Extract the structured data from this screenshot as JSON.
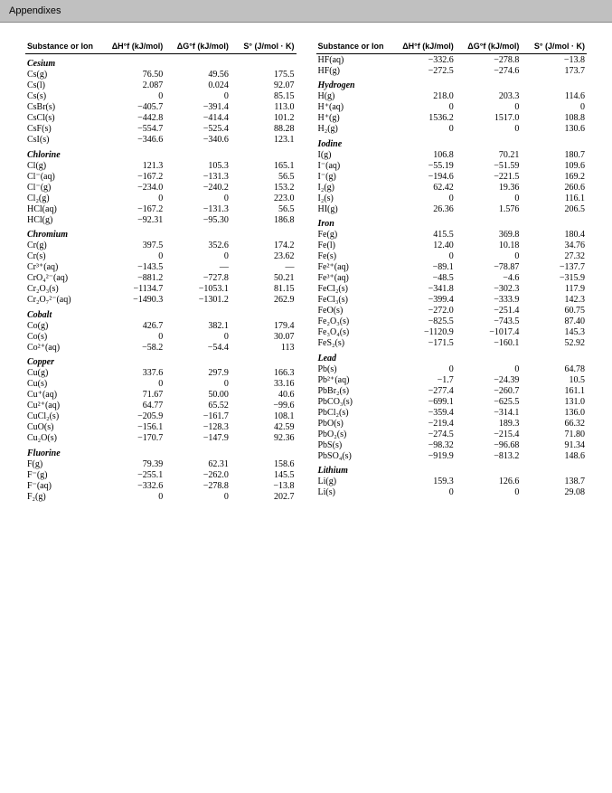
{
  "header": {
    "label": "Appendixes"
  },
  "columns": {
    "c1": "Substance or Ion",
    "c2": "ΔH°f (kJ/mol)",
    "c3": "ΔG°f (kJ/mol)",
    "c4": "S° (J/mol · K)"
  },
  "categories": [
    {
      "name": "Cesium",
      "col": 0,
      "rows": [
        [
          "Cs(g)",
          "76.50",
          "49.56",
          "175.5"
        ],
        [
          "Cs(l)",
          "2.087",
          "0.024",
          "92.07"
        ],
        [
          "Cs(s)",
          "0",
          "0",
          "85.15"
        ],
        [
          "CsBr(s)",
          "−405.7",
          "−391.4",
          "113.0"
        ],
        [
          "CsCl(s)",
          "−442.8",
          "−414.4",
          "101.2"
        ],
        [
          "CsF(s)",
          "−554.7",
          "−525.4",
          "88.28"
        ],
        [
          "CsI(s)",
          "−346.6",
          "−340.6",
          "123.1"
        ]
      ]
    },
    {
      "name": "Chlorine",
      "col": 0,
      "rows": [
        [
          "Cl(g)",
          "121.3",
          "105.3",
          "165.1"
        ],
        [
          "Cl⁻(aq)",
          "−167.2",
          "−131.3",
          "56.5"
        ],
        [
          "Cl⁻(g)",
          "−234.0",
          "−240.2",
          "153.2"
        ],
        [
          "Cl₂(g)",
          "0",
          "0",
          "223.0"
        ],
        [
          "HCl(aq)",
          "−167.2",
          "−131.3",
          "56.5"
        ],
        [
          "HCl(g)",
          "−92.31",
          "−95.30",
          "186.8"
        ]
      ]
    },
    {
      "name": "Chromium",
      "col": 0,
      "rows": [
        [
          "Cr(g)",
          "397.5",
          "352.6",
          "174.2"
        ],
        [
          "Cr(s)",
          "0",
          "0",
          "23.62"
        ],
        [
          "Cr³⁺(aq)",
          "−143.5",
          "—",
          "—"
        ],
        [
          "CrO₄²⁻(aq)",
          "−881.2",
          "−727.8",
          "50.21"
        ],
        [
          "Cr₂O₃(s)",
          "−1134.7",
          "−1053.1",
          "81.15"
        ],
        [
          "Cr₂O₇²⁻(aq)",
          "−1490.3",
          "−1301.2",
          "262.9"
        ]
      ]
    },
    {
      "name": "Cobalt",
      "col": 0,
      "rows": [
        [
          "Co(g)",
          "426.7",
          "382.1",
          "179.4"
        ],
        [
          "Co(s)",
          "0",
          "0",
          "30.07"
        ],
        [
          "Co²⁺(aq)",
          "−58.2",
          "−54.4",
          "113"
        ]
      ]
    },
    {
      "name": "Copper",
      "col": 0,
      "rows": [
        [
          "Cu(g)",
          "337.6",
          "297.9",
          "166.3"
        ],
        [
          "Cu(s)",
          "0",
          "0",
          "33.16"
        ],
        [
          "Cu⁺(aq)",
          "71.67",
          "50.00",
          "40.6"
        ],
        [
          "Cu²⁺(aq)",
          "64.77",
          "65.52",
          "−99.6"
        ],
        [
          "CuCl₂(s)",
          "−205.9",
          "−161.7",
          "108.1"
        ],
        [
          "CuO(s)",
          "−156.1",
          "−128.3",
          "42.59"
        ],
        [
          "Cu₂O(s)",
          "−170.7",
          "−147.9",
          "92.36"
        ]
      ]
    },
    {
      "name": "Fluorine",
      "col": 0,
      "rows": [
        [
          "F(g)",
          "79.39",
          "62.31",
          "158.6"
        ],
        [
          "F⁻(g)",
          "−255.1",
          "−262.0",
          "145.5"
        ],
        [
          "F⁻(aq)",
          "−332.6",
          "−278.8",
          "−13.8"
        ],
        [
          "F₂(g)",
          "0",
          "0",
          "202.7"
        ]
      ]
    },
    {
      "name": "_top",
      "col": 1,
      "rows": [
        [
          "HF(aq)",
          "−332.6",
          "−278.8",
          "−13.8"
        ],
        [
          "HF(g)",
          "−272.5",
          "−274.6",
          "173.7"
        ]
      ]
    },
    {
      "name": "Hydrogen",
      "col": 1,
      "rows": [
        [
          "H(g)",
          "218.0",
          "203.3",
          "114.6"
        ],
        [
          "H⁺(aq)",
          "0",
          "0",
          "0"
        ],
        [
          "H⁺(g)",
          "1536.2",
          "1517.0",
          "108.8"
        ],
        [
          "H₂(g)",
          "0",
          "0",
          "130.6"
        ]
      ]
    },
    {
      "name": "Iodine",
      "col": 1,
      "rows": [
        [
          "I(g)",
          "106.8",
          "70.21",
          "180.7"
        ],
        [
          "I⁻(aq)",
          "−55.19",
          "−51.59",
          "109.6"
        ],
        [
          "I⁻(g)",
          "−194.6",
          "−221.5",
          "169.2"
        ],
        [
          "I₂(g)",
          "62.42",
          "19.36",
          "260.6"
        ],
        [
          "I₂(s)",
          "0",
          "0",
          "116.1"
        ],
        [
          "HI(g)",
          "26.36",
          "1.576",
          "206.5"
        ]
      ]
    },
    {
      "name": "Iron",
      "col": 1,
      "rows": [
        [
          "Fe(g)",
          "415.5",
          "369.8",
          "180.4"
        ],
        [
          "Fe(l)",
          "12.40",
          "10.18",
          "34.76"
        ],
        [
          "Fe(s)",
          "0",
          "0",
          "27.32"
        ],
        [
          "Fe²⁺(aq)",
          "−89.1",
          "−78.87",
          "−137.7"
        ],
        [
          "Fe³⁺(aq)",
          "−48.5",
          "−4.6",
          "−315.9"
        ],
        [
          "FeCl₂(s)",
          "−341.8",
          "−302.3",
          "117.9"
        ],
        [
          "FeCl₃(s)",
          "−399.4",
          "−333.9",
          "142.3"
        ],
        [
          "FeO(s)",
          "−272.0",
          "−251.4",
          "60.75"
        ],
        [
          "Fe₂O₃(s)",
          "−825.5",
          "−743.5",
          "87.40"
        ],
        [
          "Fe₃O₄(s)",
          "−1120.9",
          "−1017.4",
          "145.3"
        ],
        [
          "FeS₂(s)",
          "−171.5",
          "−160.1",
          "52.92"
        ]
      ]
    },
    {
      "name": "Lead",
      "col": 1,
      "rows": [
        [
          "Pb(s)",
          "0",
          "0",
          "64.78"
        ],
        [
          "Pb²⁺(aq)",
          "−1.7",
          "−24.39",
          "10.5"
        ],
        [
          "PbBr₂(s)",
          "−277.4",
          "−260.7",
          "161.1"
        ],
        [
          "PbCO₃(s)",
          "−699.1",
          "−625.5",
          "131.0"
        ],
        [
          "PbCl₂(s)",
          "−359.4",
          "−314.1",
          "136.0"
        ],
        [
          "PbO(s)",
          "−219.4",
          "189.3",
          "66.32"
        ],
        [
          "PbO₂(s)",
          "−274.5",
          "−215.4",
          "71.80"
        ],
        [
          "PbS(s)",
          "−98.32",
          "−96.68",
          "91.34"
        ],
        [
          "PbSO₄(s)",
          "−919.9",
          "−813.2",
          "148.6"
        ]
      ]
    },
    {
      "name": "Lithium",
      "col": 1,
      "rows": [
        [
          "Li(g)",
          "159.3",
          "126.6",
          "138.7"
        ],
        [
          "Li(s)",
          "0",
          "0",
          "29.08"
        ]
      ]
    }
  ]
}
